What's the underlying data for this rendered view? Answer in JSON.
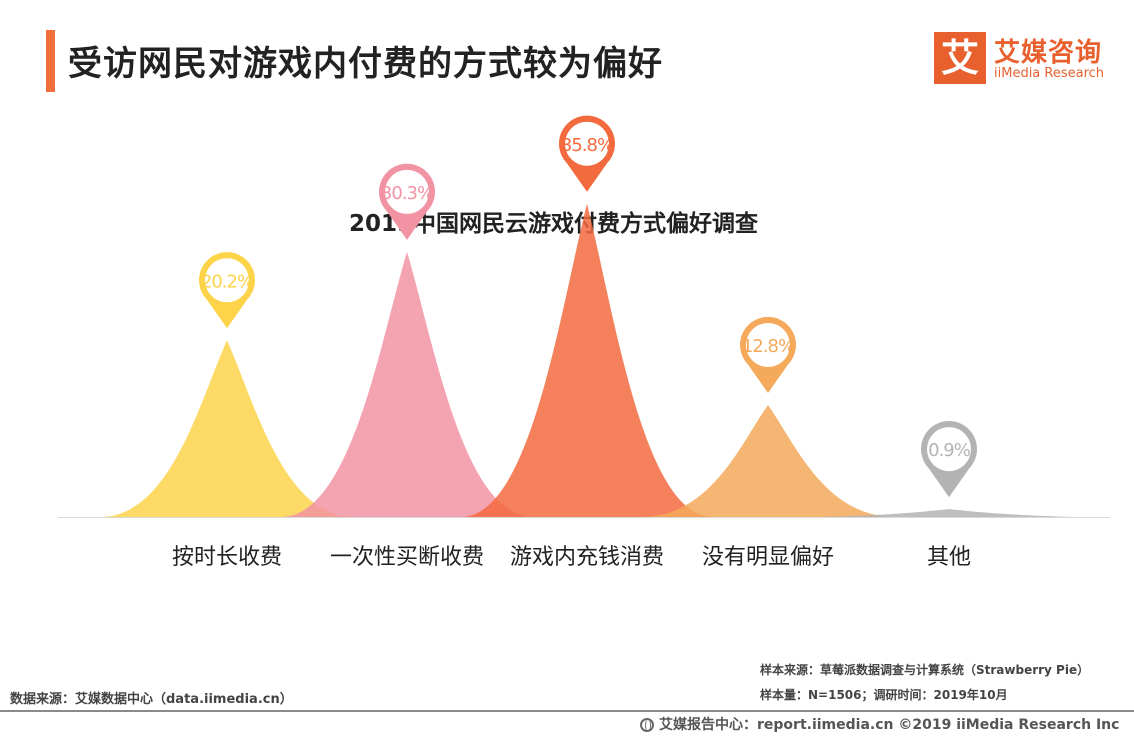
{
  "header": {
    "title": "受访网民对游戏内付费的方式较为偏好",
    "logo_mark": "艾",
    "logo_cn": "艾媒咨询",
    "logo_en": "iiMedia Research"
  },
  "notes": {
    "sample_source": "样本来源：草莓派数据调查与计算系统（Strawberry Pie）",
    "sample_size": "样本量：N=1506；调研时间：2019年10月",
    "data_source": "数据来源：艾媒数据中心（data.iimedia.cn）"
  },
  "footer": {
    "text": "艾媒报告中心：report.iimedia.cn ©2019  iiMedia Research  Inc"
  },
  "colors": {
    "accent": "#f06e3c",
    "series": [
      "#fdd34a",
      "#f293a3",
      "#f36a3f",
      "#f5a95a",
      "#b3b3b3"
    ]
  },
  "chart_data": {
    "type": "area",
    "title": "2019中国网民云游戏付费方式偏好调查",
    "categories": [
      "按时长收费",
      "一次性买断收费",
      "游戏内充钱消费",
      "没有明显偏好",
      "其他"
    ],
    "values": [
      20.2,
      30.3,
      35.8,
      12.8,
      0.9
    ],
    "data_labels": [
      "20.2%",
      "30.3%",
      "35.8%",
      "12.8%",
      "0.9%"
    ],
    "unit": "%",
    "ylim": [
      0,
      40
    ],
    "legend": "none",
    "grid": false
  }
}
